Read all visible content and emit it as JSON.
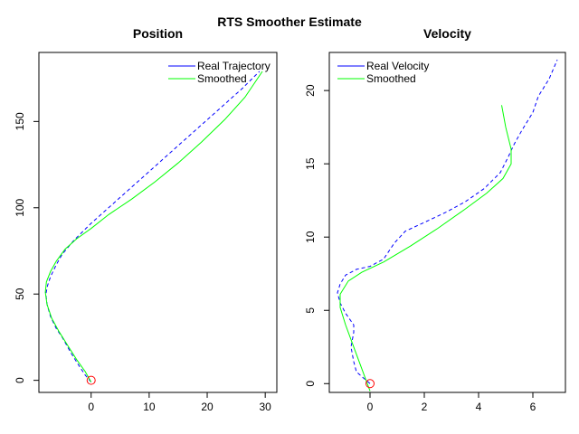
{
  "title": "RTS Smoother Estimate",
  "chart_data": [
    {
      "type": "line",
      "title": "Position",
      "xlabel": "",
      "ylabel": "",
      "xlim": [
        -9,
        32
      ],
      "ylim": [
        -7,
        190
      ],
      "xticks": [
        0,
        10,
        20,
        30
      ],
      "yticks": [
        0,
        50,
        100,
        150
      ],
      "legend_position": "top-right",
      "series": [
        {
          "name": "Real Trajectory",
          "color": "#0000ff",
          "style": "dashed",
          "x": [
            0,
            -1.0,
            -2.0,
            -3.5,
            -5.0,
            -6.0,
            -7.0,
            -7.6,
            -7.8,
            -7.5,
            -7.0,
            -6.0,
            -5.0,
            -3.0,
            0.0,
            3.0,
            6.0,
            10.0,
            14.0,
            18.0,
            22.0,
            26.0,
            29.0
          ],
          "y": [
            -1,
            3,
            8,
            16,
            25,
            30,
            37,
            44,
            50,
            55,
            60,
            67,
            73,
            81,
            91,
            100,
            109,
            121,
            133,
            145,
            157,
            169,
            179
          ]
        },
        {
          "name": "Smoothed",
          "color": "#00ff00",
          "style": "solid",
          "x": [
            0,
            -1.0,
            -2.5,
            -4.0,
            -5.5,
            -6.8,
            -7.6,
            -7.9,
            -7.7,
            -7.0,
            -6.0,
            -4.5,
            -2.5,
            0.0,
            3.0,
            7.0,
            11.0,
            15.0,
            19.0,
            23.0,
            26.5,
            29.5
          ],
          "y": [
            -1,
            5,
            12,
            20,
            28,
            36,
            44,
            51,
            57,
            63,
            69,
            76,
            82,
            88,
            96,
            105,
            115,
            126,
            138,
            151,
            164,
            179
          ]
        }
      ],
      "start_marker": {
        "x": 0,
        "y": 0,
        "color": "#ff0000"
      }
    },
    {
      "type": "line",
      "title": "Velocity",
      "xlabel": "",
      "ylabel": "",
      "xlim": [
        -1.5,
        7.2
      ],
      "ylim": [
        -0.6,
        22.6
      ],
      "xticks": [
        0,
        2,
        4,
        6
      ],
      "yticks": [
        0,
        5,
        10,
        15,
        20
      ],
      "legend_position": "top-left",
      "series": [
        {
          "name": "Real Velocity",
          "color": "#0000ff",
          "style": "dashed",
          "x": [
            0,
            -0.5,
            -0.6,
            -0.7,
            -0.6,
            -0.6,
            -0.9,
            -1.1,
            -1.2,
            -1.1,
            -0.9,
            -0.5,
            0.0,
            0.5,
            0.9,
            1.3,
            2.0,
            2.8,
            3.5,
            4.2,
            4.8,
            5.1,
            5.3,
            5.6,
            6.0,
            6.2,
            6.6,
            6.9
          ],
          "y": [
            0,
            0.8,
            1.5,
            2.5,
            3.5,
            4.0,
            4.8,
            5.5,
            6.2,
            6.8,
            7.4,
            7.8,
            8.0,
            8.5,
            9.6,
            10.4,
            11.0,
            11.7,
            12.4,
            13.3,
            14.4,
            15.5,
            16.3,
            17.3,
            18.5,
            19.6,
            20.8,
            22.1
          ]
        },
        {
          "name": "Smoothed",
          "color": "#00ff00",
          "style": "solid",
          "x": [
            0,
            -0.3,
            -0.6,
            -0.9,
            -1.1,
            -1.1,
            -0.8,
            -0.3,
            0.5,
            1.5,
            2.5,
            3.5,
            4.3,
            4.9,
            5.2,
            5.2,
            5.0,
            4.85
          ],
          "y": [
            -0.5,
            1.0,
            2.5,
            4.0,
            5.2,
            6.1,
            7.0,
            7.6,
            8.3,
            9.4,
            10.6,
            11.9,
            13.0,
            14.0,
            15.0,
            16.0,
            17.5,
            19.0
          ]
        }
      ],
      "start_marker": {
        "x": 0,
        "y": 0,
        "color": "#ff0000"
      }
    }
  ]
}
